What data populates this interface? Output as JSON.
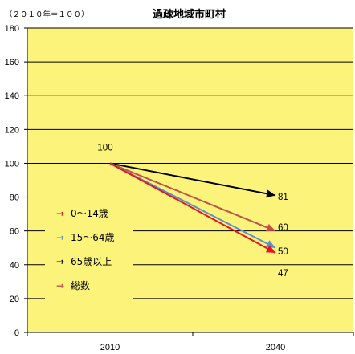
{
  "chart_data": {
    "type": "line",
    "title": "過疎地域市町村",
    "subtitle": "（２０１０年＝１００）",
    "x": [
      "2010",
      "2040"
    ],
    "ylim": [
      0,
      180
    ],
    "yticks": [
      0,
      20,
      40,
      60,
      80,
      100,
      120,
      140,
      160,
      180
    ],
    "start_label": "100",
    "series": [
      {
        "name": "0～14歳",
        "marker": "→",
        "color": "#e8141c",
        "values": [
          100,
          47
        ],
        "end_label": "47"
      },
      {
        "name": "15～64歳",
        "marker": "→",
        "color": "#5b8fce",
        "values": [
          100,
          50
        ],
        "end_label": "50"
      },
      {
        "name": "65歳以上",
        "marker": "→",
        "color": "#000000",
        "values": [
          100,
          81
        ],
        "end_label": "81"
      },
      {
        "name": "総数",
        "marker": "→",
        "color": "#c0504d",
        "values": [
          100,
          60
        ],
        "end_label": "60"
      }
    ],
    "plot_background": "#fcf47a",
    "gridlines": true,
    "legend_position": "left"
  }
}
